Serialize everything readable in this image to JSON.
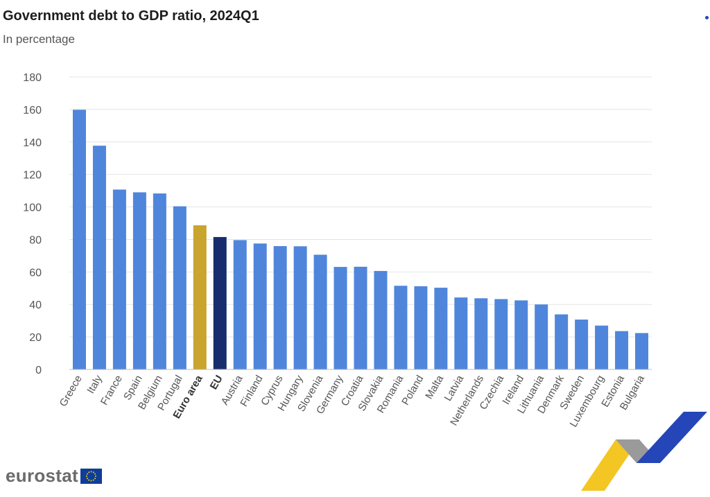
{
  "header": {
    "title": "Government debt to GDP ratio, 2024Q1",
    "subtitle": "In percentage"
  },
  "branding": {
    "logo_text": "eurostat"
  },
  "colors": {
    "default_bar": "#4f86dc",
    "euro_area_bar": "#c9a42e",
    "eu_bar": "#182d6e",
    "grid": "#e4e4e4",
    "flag": "#0f3d99",
    "flag_stars": "#f5d000"
  },
  "chart_data": {
    "type": "bar",
    "title": "Government debt to GDP ratio, 2024Q1",
    "subtitle": "In percentage",
    "xlabel": "",
    "ylabel": "",
    "ylim": [
      0,
      180
    ],
    "yticks": [
      0,
      20,
      40,
      60,
      80,
      100,
      120,
      140,
      160,
      180
    ],
    "grid": true,
    "categories": [
      "Greece",
      "Italy",
      "France",
      "Spain",
      "Belgium",
      "Portugal",
      "Euro area",
      "EU",
      "Austria",
      "Finland",
      "Cyprus",
      "Hungary",
      "Slovenia",
      "Germany",
      "Croatia",
      "Slovakia",
      "Romania",
      "Poland",
      "Malta",
      "Latvia",
      "Netherlands",
      "Czechia",
      "Ireland",
      "Lithuania",
      "Denmark",
      "Sweden",
      "Luxembourg",
      "Estonia",
      "Bulgaria"
    ],
    "values": [
      159.8,
      137.7,
      110.7,
      109.0,
      108.3,
      100.4,
      88.7,
      81.5,
      79.6,
      77.5,
      75.9,
      75.8,
      70.6,
      63.1,
      63.2,
      60.6,
      51.5,
      51.2,
      50.3,
      44.3,
      43.8,
      43.3,
      42.5,
      40.0,
      33.9,
      30.7,
      27.0,
      23.6,
      22.4
    ],
    "highlight": {
      "Euro area": "euro_area_bar",
      "EU": "eu_bar"
    },
    "bold_labels": [
      "Euro area",
      "EU"
    ]
  }
}
